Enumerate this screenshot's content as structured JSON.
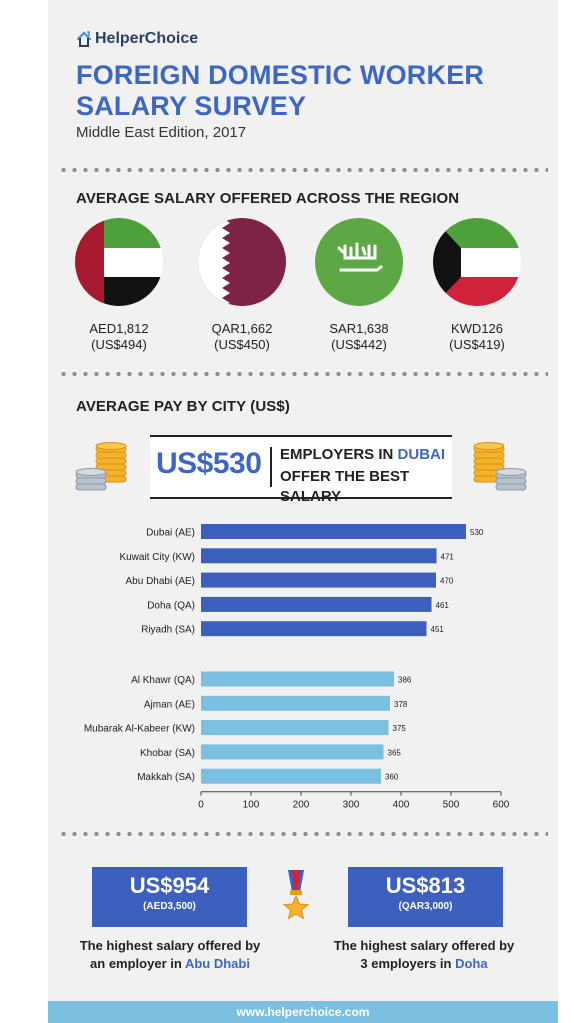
{
  "brand": {
    "name": "HelperChoice"
  },
  "header": {
    "title_line1": "FOREIGN DOMESTIC WORKER",
    "title_line2": "SALARY SURVEY",
    "subtitle": "Middle East Edition, 2017"
  },
  "region": {
    "title": "AVERAGE SALARY OFFERED ACROSS THE REGION",
    "countries": [
      {
        "flag": "uae-flag",
        "local": "AED1,812",
        "usd": "(US$494)"
      },
      {
        "flag": "qatar-flag",
        "local": "QAR1,662",
        "usd": "(US$450)"
      },
      {
        "flag": "saudi-flag",
        "local": "SAR1,638",
        "usd": "(US$442)"
      },
      {
        "flag": "kuwait-flag",
        "local": "KWD126",
        "usd": "(US$419)"
      }
    ]
  },
  "city_section": {
    "title": "AVERAGE PAY BY CITY (US$)",
    "banner": {
      "amount": "US$530",
      "line1_prefix": "EMPLOYERS IN ",
      "line1_city": "DUBAI",
      "line2": "OFFER THE BEST SALARY"
    }
  },
  "chart_data": {
    "type": "bar",
    "orientation": "horizontal",
    "categories": [
      "Dubai (AE)",
      "Kuwait City (KW)",
      "Abu Dhabi (AE)",
      "Doha (QA)",
      "Riyadh (SA)",
      "Al Khawr (QA)",
      "Ajman (AE)",
      "Mubarak Al-Kabeer (KW)",
      "Khobar (SA)",
      "Makkah (SA)"
    ],
    "values": [
      530,
      471,
      470,
      461,
      451,
      386,
      378,
      375,
      365,
      360
    ],
    "groups": [
      "top",
      "top",
      "top",
      "top",
      "top",
      "bottom",
      "bottom",
      "bottom",
      "bottom",
      "bottom"
    ],
    "colors": {
      "top": "#3d5fbe",
      "bottom": "#7bc0e0"
    },
    "xlim": [
      0,
      600
    ],
    "xticks": [
      0,
      100,
      200,
      300,
      400,
      500,
      600
    ],
    "grid": false
  },
  "highlights": [
    {
      "amount": "US$954",
      "sub": "(AED3,500)",
      "caption_line1": "The highest salary offered by",
      "caption_line2_prefix": "an employer in ",
      "caption_city": "Abu Dhabi"
    },
    {
      "amount": "US$813",
      "sub": "(QAR3,000)",
      "caption_line1": "The highest salary offered by",
      "caption_line2_prefix": "3 employers in ",
      "caption_city": "Doha"
    }
  ],
  "footer": {
    "url": "www.helperchoice.com"
  }
}
